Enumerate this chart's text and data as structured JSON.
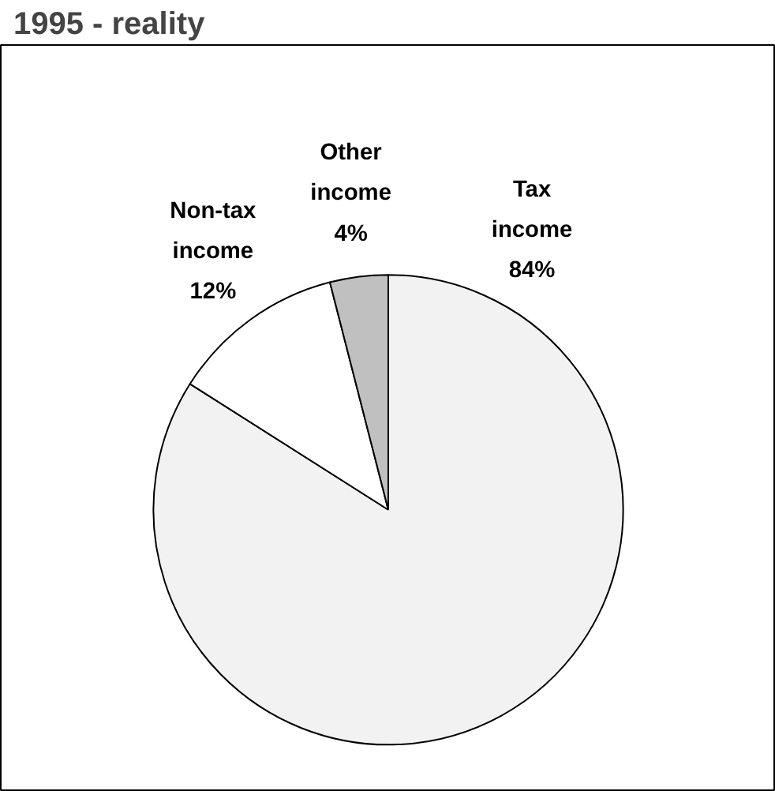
{
  "chart_data": {
    "type": "pie",
    "title": "1995 - reality",
    "categories": [
      "Tax income",
      "Non-tax income",
      "Other income"
    ],
    "values": [
      84,
      12,
      4
    ],
    "colors": [
      "#f2f2f2",
      "#ffffff",
      "#c0c0c0"
    ],
    "value_labels": [
      "84%",
      "12%",
      "4%"
    ]
  }
}
